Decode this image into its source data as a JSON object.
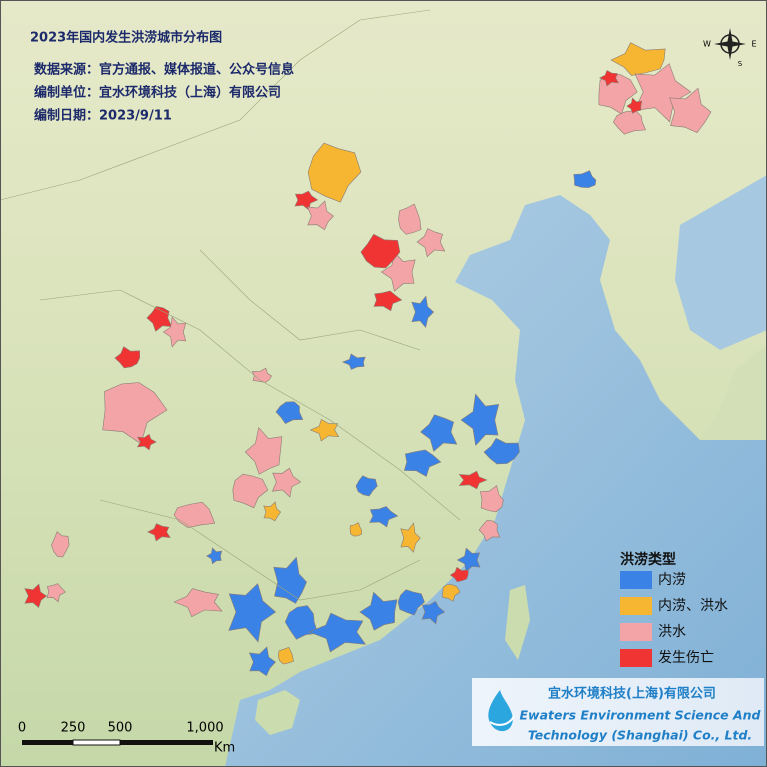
{
  "header": {
    "title": "2023年国内发生洪涝城市分布图",
    "lines": [
      "数据来源：官方通报、媒体报道、公众号信息",
      "编制单位：宜水环境科技（上海）有限公司",
      "编制日期：2023/9/11"
    ]
  },
  "legend": {
    "title": "洪涝类型",
    "items": [
      {
        "label": "内涝",
        "color": "#3b82e6"
      },
      {
        "label": "内涝、洪水",
        "color": "#f7b632"
      },
      {
        "label": "洪水",
        "color": "#f2a4a6"
      },
      {
        "label": "发生伤亡",
        "color": "#f03434"
      }
    ]
  },
  "scale_bar": {
    "labels": [
      "0",
      "250",
      "500",
      "1,000"
    ],
    "unit": "Km"
  },
  "compass": {
    "west": "W",
    "east": "E",
    "south": "S"
  },
  "logo": {
    "name": "宜水环境科技(上海)有限公司",
    "english": [
      "Ewaters Environment Science And",
      "Technology (Shanghai) Co., Ltd."
    ]
  }
}
